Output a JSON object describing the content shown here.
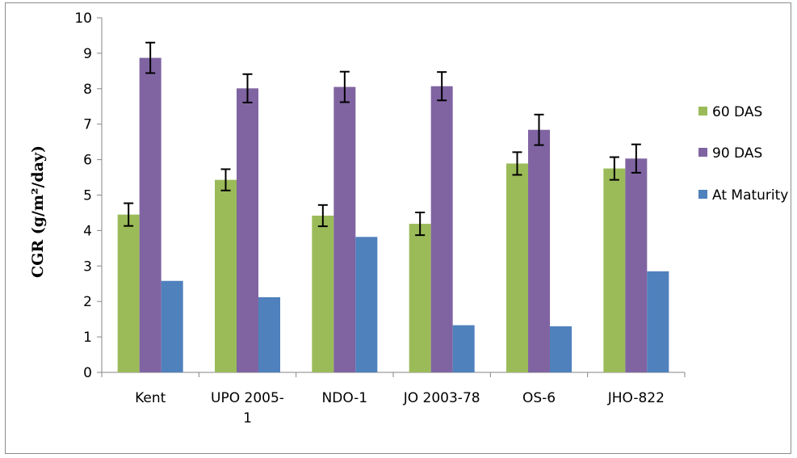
{
  "chart_data": {
    "type": "bar",
    "ylabel": "CGR (g/m²/day)",
    "categories": [
      [
        "Kent"
      ],
      [
        "UPO 2005-",
        "1"
      ],
      [
        "NDO-1"
      ],
      [
        "JO 2003-78"
      ],
      [
        "OS-6"
      ],
      [
        "JHO-822"
      ]
    ],
    "ylim": [
      0,
      10
    ],
    "yticks": [
      0,
      1,
      2,
      3,
      4,
      5,
      6,
      7,
      8,
      9,
      10
    ],
    "grid": false,
    "legend_position": "right",
    "series": [
      {
        "name": "60 DAS",
        "color": "#9bbb59",
        "values": [
          4.45,
          5.43,
          4.42,
          4.19,
          5.89,
          5.75
        ],
        "errors": [
          0.32,
          0.3,
          0.3,
          0.32,
          0.32,
          0.32
        ]
      },
      {
        "name": "90 DAS",
        "color": "#8064a2",
        "values": [
          8.87,
          8.01,
          8.05,
          8.07,
          6.84,
          6.03
        ],
        "errors": [
          0.43,
          0.4,
          0.43,
          0.4,
          0.43,
          0.4
        ]
      },
      {
        "name": "At Maturity",
        "color": "#4f81bd",
        "values": [
          2.58,
          2.12,
          3.82,
          1.33,
          1.3,
          2.85
        ],
        "errors": null
      }
    ]
  }
}
